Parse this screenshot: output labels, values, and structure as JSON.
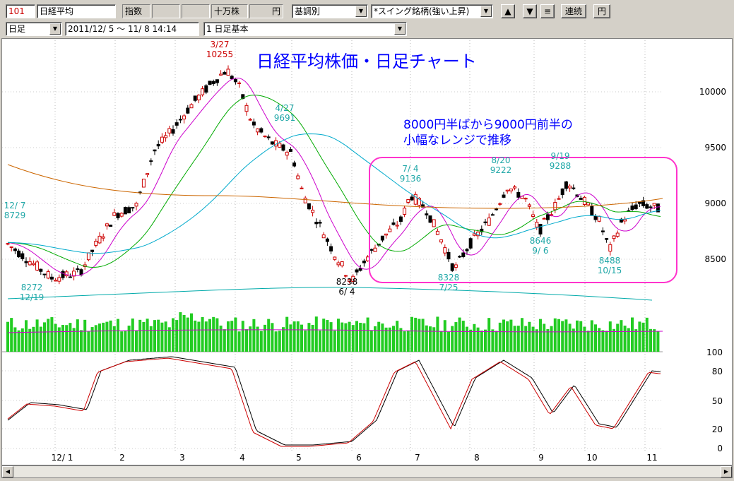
{
  "toolbar1": {
    "code": "101",
    "name": "日経平均",
    "type_label": "指数",
    "unit_label": "十万株",
    "currency_label": "円",
    "trend_select": "基調別",
    "screen_select": "*スイング銘柄(強い上昇)",
    "up_symbol": "▲",
    "down_symbol": "▼",
    "menu_symbol": "≡",
    "continuous_label": "連続",
    "yen_label": "円"
  },
  "toolbar2": {
    "period_select": "日足",
    "date_range": "2011/12/ 5 ～ 11/ 8 14:14",
    "chart_select": "1 日足基本"
  },
  "chart": {
    "title": "日経平均株価・日足チャート",
    "annotation_line1": "8000円半ばから9000円前半の",
    "annotation_line2": "小幅なレンジで推移",
    "price_axis": [
      "10000",
      "9500",
      "9000",
      "8500"
    ],
    "volume_axis": [
      "100"
    ],
    "osc_axis": [
      "80",
      "50",
      "20",
      "0"
    ],
    "x_labels": [
      "12/ 1",
      "2",
      "3",
      "4",
      "5",
      "6",
      "7",
      "8",
      "9",
      "10",
      "11"
    ],
    "points": [
      {
        "date": "12/ 7",
        "value": "8729",
        "color": "#1fa7a7"
      },
      {
        "date": "12/19",
        "value": "8272",
        "color": "#1fa7a7",
        "below": true
      },
      {
        "date": "3/27",
        "value": "10255",
        "color": "#cc0000"
      },
      {
        "date": "4/27",
        "value": "9691",
        "color": "#1fa7a7"
      },
      {
        "date": "6/ 4",
        "value": "8238",
        "color": "#000000",
        "below": true
      },
      {
        "date": "7/ 4",
        "value": "9136",
        "color": "#1fa7a7"
      },
      {
        "date": "7/25",
        "value": "8328",
        "color": "#1fa7a7",
        "below": true
      },
      {
        "date": "8/20",
        "value": "9222",
        "color": "#1fa7a7"
      },
      {
        "date": "9/19",
        "value": "9288",
        "color": "#1fa7a7"
      },
      {
        "date": "9/ 6",
        "value": "8646",
        "color": "#1fa7a7",
        "below": true
      },
      {
        "date": "10/15",
        "value": "8488",
        "color": "#1fa7a7",
        "below": true
      }
    ],
    "colors": {
      "candle": "#000000",
      "ma_short": "#cc00cc",
      "ma_mid": "#00aa00",
      "ma_long": "#00aacc",
      "ma_vlong": "#cc6600",
      "volume": "#22cc22",
      "box": "#ff33cc",
      "title": "#0000ff",
      "osc_k": "#000000",
      "osc_d": "#cc0000"
    }
  }
}
